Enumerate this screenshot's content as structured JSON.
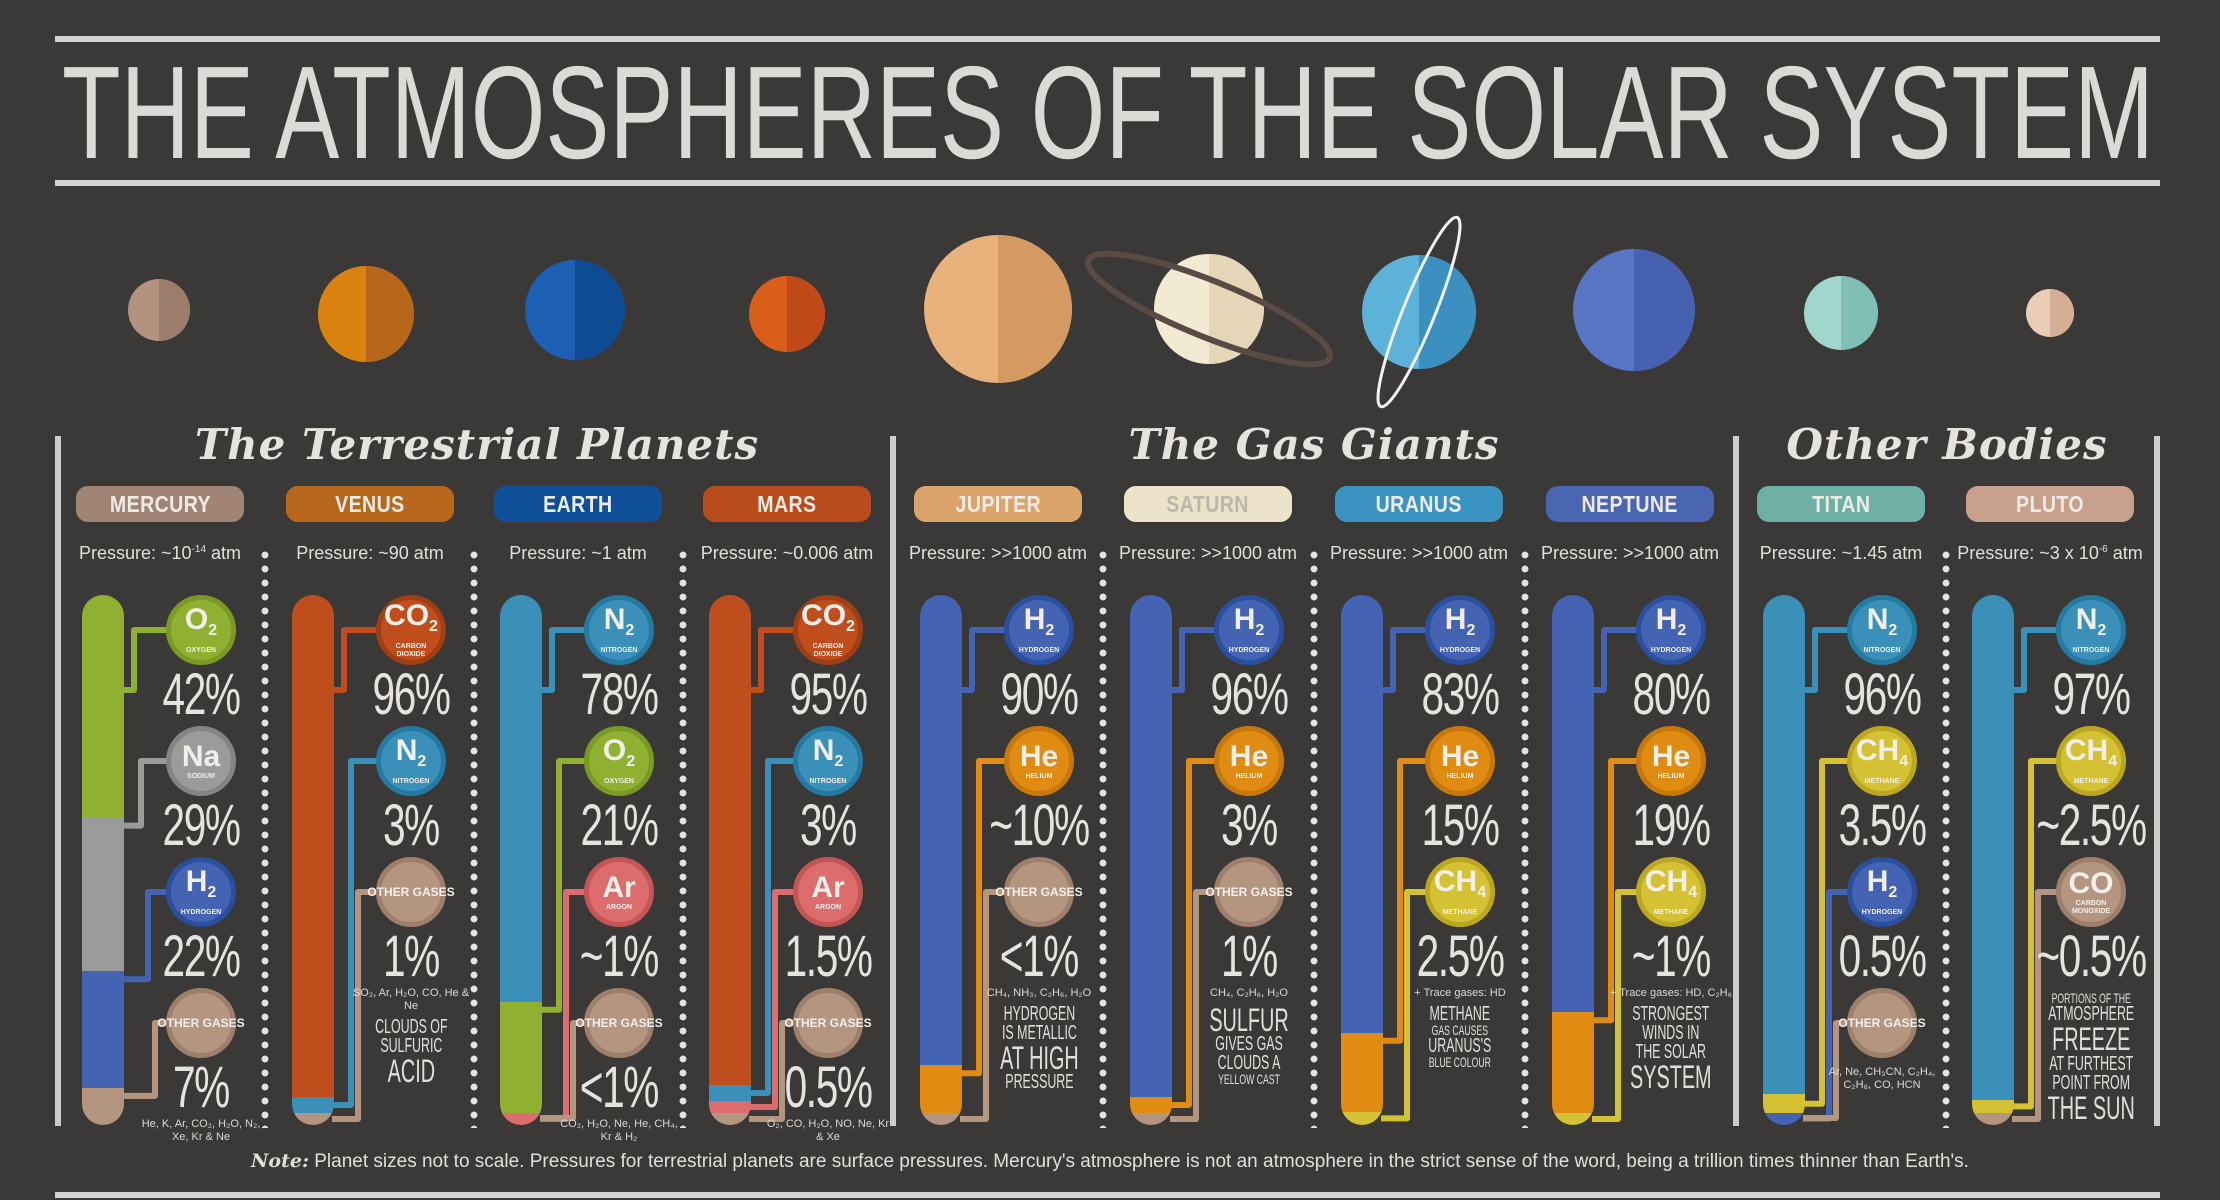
{
  "title": "THE ATMOSPHERES OF THE SOLAR SYSTEM",
  "colors": {
    "background": "#3a3937",
    "text": "#e2dfda",
    "rule": "#d4d2ce"
  },
  "sections": [
    {
      "title": "The Terrestrial Planets"
    },
    {
      "title": "The Gas Giants"
    },
    {
      "title": "Other Bodies"
    }
  ],
  "planets": [
    {
      "name": "Mercury",
      "light": "#b3927f",
      "dark": "#9c7d6b"
    },
    {
      "name": "Venus",
      "light": "#d9820f",
      "dark": "#b8661a"
    },
    {
      "name": "Earth",
      "light": "#1d5fb3",
      "dark": "#0f4a95"
    },
    {
      "name": "Mars",
      "light": "#da5d1a",
      "dark": "#c04a18"
    },
    {
      "name": "Jupiter",
      "light": "#e9b17c",
      "dark": "#d49a62"
    },
    {
      "name": "Saturn",
      "light": "#f3ead3",
      "dark": "#e5d6b7",
      "ring": true
    },
    {
      "name": "Uranus",
      "light": "#5cb2d9",
      "dark": "#3b90c0",
      "ring": true
    },
    {
      "name": "Neptune",
      "light": "#5775c2",
      "dark": "#4561b0"
    },
    {
      "name": "Titan",
      "light": "#a1d6cd",
      "dark": "#80bfb5"
    },
    {
      "name": "Pluto",
      "light": "#ebcdb7",
      "dark": "#d5ae96"
    }
  ],
  "columns": [
    {
      "label": "MERCURY",
      "color": "#a08575",
      "pressure": {
        "prefix": "Pressure: ~10",
        "sup": "-14",
        "suffix": " atm"
      },
      "gases": [
        {
          "symbol": "O",
          "sub": "2",
          "name": "OXYGEN",
          "percent": "42%",
          "value": 42,
          "color": "#8fb031",
          "ring": "#7a9a25"
        },
        {
          "symbol": "Na",
          "sub": "",
          "name": "SODIUM",
          "percent": "29%",
          "value": 29,
          "color": "#9b9b9b",
          "ring": "#848484"
        },
        {
          "symbol": "H",
          "sub": "2",
          "name": "HYDROGEN",
          "percent": "22%",
          "value": 22,
          "color": "#4563b3",
          "ring": "#2a4f9e"
        },
        {
          "symbol": "OTHER GASES",
          "other": true,
          "name": "",
          "percent": "7%",
          "value": 7,
          "color": "#b49580",
          "ring": "#9d7f6b",
          "trace": "He, K, Ar, CO₂, H₂O, N₂, Xe, Kr & Ne"
        }
      ]
    },
    {
      "label": "VENUS",
      "color": "#b8681c",
      "pressure": {
        "prefix": "Pressure: ~90 atm",
        "sup": "",
        "suffix": ""
      },
      "gases": [
        {
          "symbol": "CO",
          "sub": "2",
          "name": "CARBON DIOXIDE",
          "percent": "96%",
          "value": 96,
          "color": "#c04e1c",
          "ring": "#a03e14"
        },
        {
          "symbol": "N",
          "sub": "2",
          "name": "NITROGEN",
          "percent": "3%",
          "value": 3,
          "color": "#3a90b9",
          "ring": "#237aa3"
        },
        {
          "symbol": "OTHER GASES",
          "other": true,
          "name": "",
          "percent": "1%",
          "value": 1,
          "color": "#b49580",
          "ring": "#9d7f6b",
          "trace": "SO₂, Ar, H₂O, CO, He & Ne"
        }
      ],
      "caption": [
        {
          "text": "CLOUDS OF",
          "size": "m"
        },
        {
          "text": "SULFURIC",
          "size": "m"
        },
        {
          "text": "ACID",
          "size": "l"
        }
      ]
    },
    {
      "label": "EARTH",
      "color": "#0f4f9a",
      "pressure": {
        "prefix": "Pressure: ~1 atm",
        "sup": "",
        "suffix": ""
      },
      "gases": [
        {
          "symbol": "N",
          "sub": "2",
          "name": "NITROGEN",
          "percent": "78%",
          "value": 78,
          "color": "#3a90b9",
          "ring": "#237aa3"
        },
        {
          "symbol": "O",
          "sub": "2",
          "name": "OXYGEN",
          "percent": "21%",
          "value": 21,
          "color": "#8fb031",
          "ring": "#7a9a25"
        },
        {
          "symbol": "Ar",
          "sub": "",
          "name": "ARGON",
          "percent": "~1%",
          "value": 1,
          "color": "#dd6d6d",
          "ring": "#c45656"
        },
        {
          "symbol": "OTHER GASES",
          "other": true,
          "name": "",
          "percent": "<1%",
          "value": 0,
          "color": "#b49580",
          "ring": "#9d7f6b",
          "trace": "CO₂, H₂O, Ne, He, CH₄, Kr & H₂"
        }
      ]
    },
    {
      "label": "MARS",
      "color": "#b84c1c",
      "pressure": {
        "prefix": "Pressure: ~0.006 atm",
        "sup": "",
        "suffix": ""
      },
      "gases": [
        {
          "symbol": "CO",
          "sub": "2",
          "name": "CARBON DIOXIDE",
          "percent": "95%",
          "value": 95,
          "color": "#c04e1c",
          "ring": "#a03e14"
        },
        {
          "symbol": "N",
          "sub": "2",
          "name": "NITROGEN",
          "percent": "3%",
          "value": 3,
          "color": "#3a90b9",
          "ring": "#237aa3"
        },
        {
          "symbol": "Ar",
          "sub": "",
          "name": "ARGON",
          "percent": "1.5%",
          "value": 1.5,
          "color": "#dd6d6d",
          "ring": "#c45656"
        },
        {
          "symbol": "OTHER GASES",
          "other": true,
          "name": "",
          "percent": "0.5%",
          "value": 0.5,
          "color": "#b49580",
          "ring": "#9d7f6b",
          "trace": "O₂, CO, H₂O, NO, Ne, Kr & Xe"
        }
      ]
    },
    {
      "label": "JUPITER",
      "color": "#dba46b",
      "pressure": {
        "prefix": "Pressure: >>1000 atm",
        "sup": "",
        "suffix": ""
      },
      "gases": [
        {
          "symbol": "H",
          "sub": "2",
          "name": "HYDROGEN",
          "percent": "90%",
          "value": 90,
          "color": "#4563b3",
          "ring": "#2a4f9e"
        },
        {
          "symbol": "He",
          "sub": "",
          "name": "HELIUM",
          "percent": "~10%",
          "value": 9,
          "color": "#e08c12",
          "ring": "#c8780a"
        },
        {
          "symbol": "OTHER GASES",
          "other": true,
          "name": "",
          "percent": "<1%",
          "value": 1,
          "color": "#b49580",
          "ring": "#9d7f6b",
          "trace": "CH₄, NH₃, C₂H₆, H₂O"
        }
      ],
      "caption": [
        {
          "text": "HYDROGEN",
          "size": "m"
        },
        {
          "text": "IS METALLIC",
          "size": "m"
        },
        {
          "text": "AT HIGH",
          "size": "l"
        },
        {
          "text": "PRESSURE",
          "size": "m"
        }
      ]
    },
    {
      "label": "SATURN",
      "color": "#ece2ca",
      "pressure": {
        "prefix": "Pressure: >>1000 atm",
        "sup": "",
        "suffix": ""
      },
      "gases": [
        {
          "symbol": "H",
          "sub": "2",
          "name": "HYDROGEN",
          "percent": "96%",
          "value": 96,
          "color": "#4563b3",
          "ring": "#2a4f9e"
        },
        {
          "symbol": "He",
          "sub": "",
          "name": "HELIUM",
          "percent": "3%",
          "value": 3,
          "color": "#e08c12",
          "ring": "#c8780a"
        },
        {
          "symbol": "OTHER GASES",
          "other": true,
          "name": "",
          "percent": "1%",
          "value": 1,
          "color": "#b49580",
          "ring": "#9d7f6b",
          "trace": "CH₄, C₂H₆, H₂O"
        }
      ],
      "caption": [
        {
          "text": "SULFUR",
          "size": "l"
        },
        {
          "text": "GIVES GAS",
          "size": "m"
        },
        {
          "text": "CLOUDS A",
          "size": "m"
        },
        {
          "text": "YELLOW CAST",
          "size": "s"
        }
      ]
    },
    {
      "label": "URANUS",
      "color": "#3a93c0",
      "pressure": {
        "prefix": "Pressure: >>1000 atm",
        "sup": "",
        "suffix": ""
      },
      "gases": [
        {
          "symbol": "H",
          "sub": "2",
          "name": "HYDROGEN",
          "percent": "83%",
          "value": 83,
          "color": "#4563b3",
          "ring": "#2a4f9e"
        },
        {
          "symbol": "He",
          "sub": "",
          "name": "HELIUM",
          "percent": "15%",
          "value": 15,
          "color": "#e08c12",
          "ring": "#c8780a"
        },
        {
          "symbol": "CH",
          "sub": "4",
          "name": "METHANE",
          "percent": "2.5%",
          "value": 2.5,
          "color": "#d5c234",
          "ring": "#bca820",
          "trace": "+ Trace gases: HD"
        }
      ],
      "caption": [
        {
          "text": "METHANE",
          "size": "m"
        },
        {
          "text": "GAS CAUSES",
          "size": "s"
        },
        {
          "text": "URANUS'S",
          "size": "m"
        },
        {
          "text": "BLUE COLOUR",
          "size": "s"
        }
      ]
    },
    {
      "label": "NEPTUNE",
      "color": "#4a65b2",
      "pressure": {
        "prefix": "Pressure: >>1000 atm",
        "sup": "",
        "suffix": ""
      },
      "gases": [
        {
          "symbol": "H",
          "sub": "2",
          "name": "HYDROGEN",
          "percent": "80%",
          "value": 80,
          "color": "#4563b3",
          "ring": "#2a4f9e"
        },
        {
          "symbol": "He",
          "sub": "",
          "name": "HELIUM",
          "percent": "19%",
          "value": 19,
          "color": "#e08c12",
          "ring": "#c8780a"
        },
        {
          "symbol": "CH",
          "sub": "4",
          "name": "METHANE",
          "percent": "~1%",
          "value": 1,
          "color": "#d5c234",
          "ring": "#bca820",
          "trace": "+ Trace gases: HD, C₂H₆"
        }
      ],
      "caption": [
        {
          "text": "STRONGEST",
          "size": "m"
        },
        {
          "text": "WINDS IN",
          "size": "m"
        },
        {
          "text": "THE SOLAR",
          "size": "m"
        },
        {
          "text": "SYSTEM",
          "size": "l"
        }
      ]
    },
    {
      "label": "TITAN",
      "color": "#6fb0a5",
      "pressure": {
        "prefix": "Pressure: ~1.45 atm",
        "sup": "",
        "suffix": ""
      },
      "gases": [
        {
          "symbol": "N",
          "sub": "2",
          "name": "NITROGEN",
          "percent": "96%",
          "value": 96,
          "color": "#3a90b9",
          "ring": "#237aa3"
        },
        {
          "symbol": "CH",
          "sub": "4",
          "name": "METHANE",
          "percent": "3.5%",
          "value": 3.5,
          "color": "#d5c234",
          "ring": "#bca820"
        },
        {
          "symbol": "H",
          "sub": "2",
          "name": "HYDROGEN",
          "percent": "0.5%",
          "value": 0.5,
          "color": "#4563b3",
          "ring": "#2a4f9e"
        },
        {
          "symbol": "OTHER GASES",
          "other": true,
          "name": "",
          "percent": "",
          "value": 0,
          "color": "#b49580",
          "ring": "#9d7f6b",
          "trace": "Ar, Ne, CH₃CN, C₂H₄, C₂H₆, CO, HCN"
        }
      ]
    },
    {
      "label": "PLUTO",
      "color": "#c9a08c",
      "pressure": {
        "prefix": "Pressure: ~3 x 10",
        "sup": "-6",
        "suffix": " atm"
      },
      "gases": [
        {
          "symbol": "N",
          "sub": "2",
          "name": "NITROGEN",
          "percent": "97%",
          "value": 97,
          "color": "#3a90b9",
          "ring": "#237aa3"
        },
        {
          "symbol": "CH",
          "sub": "4",
          "name": "METHANE",
          "percent": "~2.5%",
          "value": 2.5,
          "color": "#d5c234",
          "ring": "#bca820"
        },
        {
          "symbol": "CO",
          "sub": "",
          "name": "CARBON MONOXIDE",
          "percent": "~0.5%",
          "value": 0.5,
          "color": "#b49580",
          "ring": "#9d7f6b"
        }
      ],
      "caption": [
        {
          "text": "PORTIONS OF THE",
          "size": "s"
        },
        {
          "text": "ATMOSPHERE",
          "size": "m"
        },
        {
          "text": "FREEZE",
          "size": "l"
        },
        {
          "text": "AT FURTHEST",
          "size": "m"
        },
        {
          "text": "POINT FROM",
          "size": "m"
        },
        {
          "text": "THE SUN",
          "size": "l"
        }
      ]
    }
  ],
  "note": {
    "label": "Note:",
    "text": "Planet sizes not to scale. Pressures for terrestrial planets are surface pressures. Mercury's atmosphere is not an atmosphere in the strict sense of the word, being a trillion times thinner than Earth's."
  }
}
